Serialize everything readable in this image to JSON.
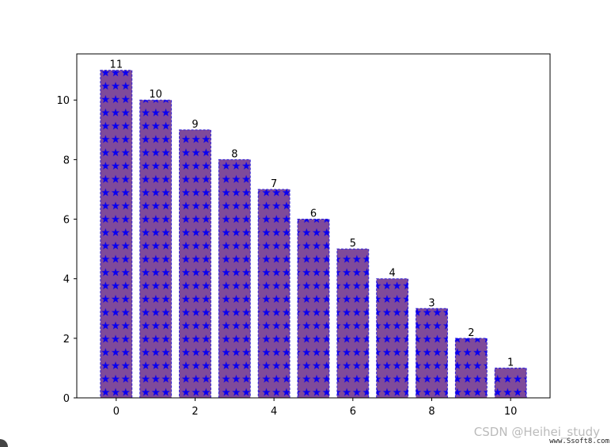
{
  "chart_data": {
    "type": "bar",
    "categories": [
      "0",
      "1",
      "2",
      "3",
      "4",
      "5",
      "6",
      "7",
      "8",
      "9",
      "10"
    ],
    "x": [
      0,
      1,
      2,
      3,
      4,
      5,
      6,
      7,
      8,
      9,
      10
    ],
    "values": [
      11,
      10,
      9,
      8,
      7,
      6,
      5,
      4,
      3,
      2,
      1
    ],
    "data_labels": [
      "11",
      "10",
      "9",
      "8",
      "7",
      "6",
      "5",
      "4",
      "3",
      "2",
      "1"
    ],
    "title": "",
    "xlabel": "",
    "ylabel": "",
    "xlim": [
      -1,
      11
    ],
    "ylim": [
      0,
      11.55
    ],
    "xticks": [
      0,
      2,
      4,
      6,
      8,
      10
    ],
    "yticks": [
      0,
      2,
      4,
      6,
      8,
      10
    ],
    "grid": false,
    "bar_face_color": "#7f4a9a",
    "bar_edge_color": "#3020d8",
    "hatch_color": "#0a00f0",
    "hatch": "stars"
  },
  "watermark": "CSDN @Heihei_study",
  "source_text": "www.Ssoft8.com"
}
